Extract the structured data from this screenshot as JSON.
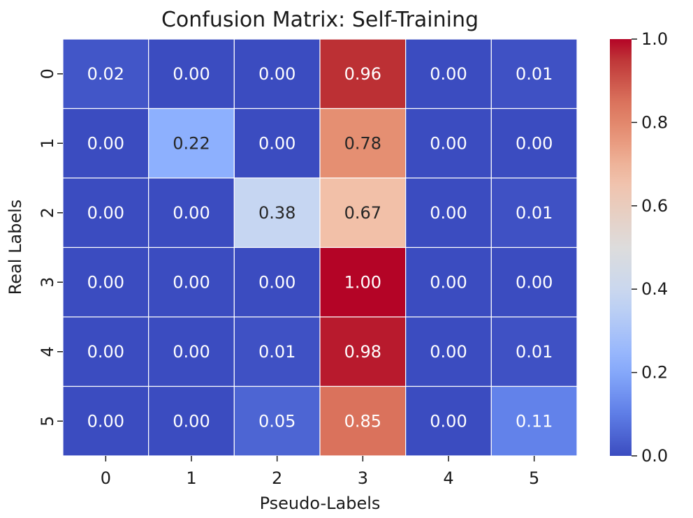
{
  "chart_data": {
    "type": "heatmap",
    "title": "Confusion Matrix: Self-Training",
    "xlabel": "Pseudo-Labels",
    "ylabel": "Real Labels",
    "x_categories": [
      "0",
      "1",
      "2",
      "3",
      "4",
      "5"
    ],
    "y_categories": [
      "0",
      "1",
      "2",
      "3",
      "4",
      "5"
    ],
    "values": [
      [
        0.02,
        0.0,
        0.0,
        0.96,
        0.0,
        0.01
      ],
      [
        0.0,
        0.22,
        0.0,
        0.78,
        0.0,
        0.0
      ],
      [
        0.0,
        0.0,
        0.38,
        0.67,
        0.0,
        0.01
      ],
      [
        0.0,
        0.0,
        0.0,
        1.0,
        0.0,
        0.0
      ],
      [
        0.0,
        0.0,
        0.01,
        0.98,
        0.0,
        0.01
      ],
      [
        0.0,
        0.0,
        0.05,
        0.85,
        0.0,
        0.11
      ]
    ],
    "value_format": "0.00",
    "colormap": "coolwarm",
    "vmin": 0.0,
    "vmax": 1.0,
    "colorbar_ticks": [
      "0.0",
      "0.2",
      "0.4",
      "0.6",
      "0.8",
      "1.0"
    ],
    "colorbar_tick_values": [
      0.0,
      0.2,
      0.4,
      0.6,
      0.8,
      1.0
    ],
    "cell_border_color": "#ffffff"
  }
}
